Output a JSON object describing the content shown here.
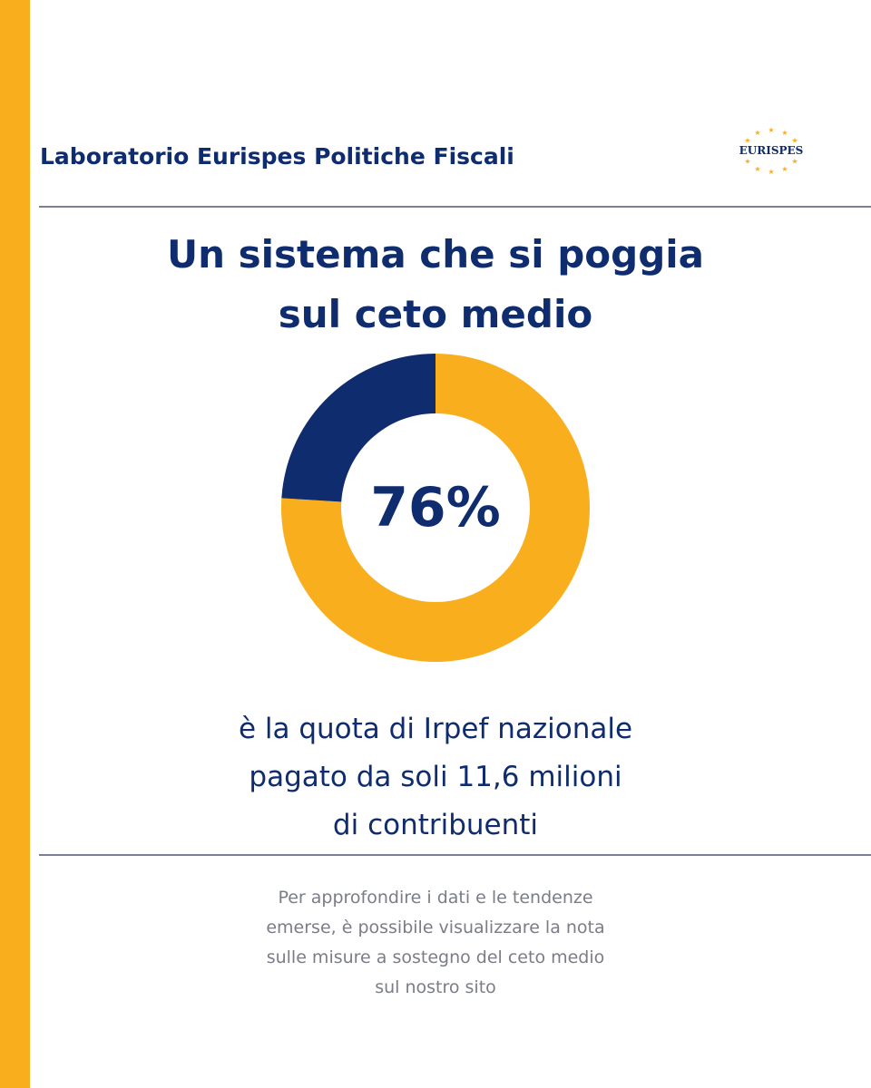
{
  "header": {
    "title": "Laboratorio Eurispes Politiche Fiscali",
    "logo_text": "EURISPES"
  },
  "main_title": {
    "line1": "Un sistema che si poggia",
    "line2": "sul ceto medio"
  },
  "chart_data": {
    "type": "pie",
    "center_label": "76%",
    "slices": [
      {
        "value": 76
      },
      {
        "value": 24
      }
    ],
    "colors": [
      "#f9ae1d",
      "#0f2c6e"
    ]
  },
  "subtitle": {
    "lines": [
      "è la quota di Irpef nazionale",
      "pagato da soli 11,6 milioni",
      "di contribuenti"
    ]
  },
  "note": {
    "lines": [
      "Per approfondire i dati e le tendenze",
      "emerse, è possibile visualizzare la nota",
      "sulle misure a sostegno del ceto medio",
      "sul nostro sito"
    ]
  },
  "colors": {
    "accent": "#f9ae1d",
    "brand": "#0f2c6e",
    "muted": "#7a7d88"
  }
}
